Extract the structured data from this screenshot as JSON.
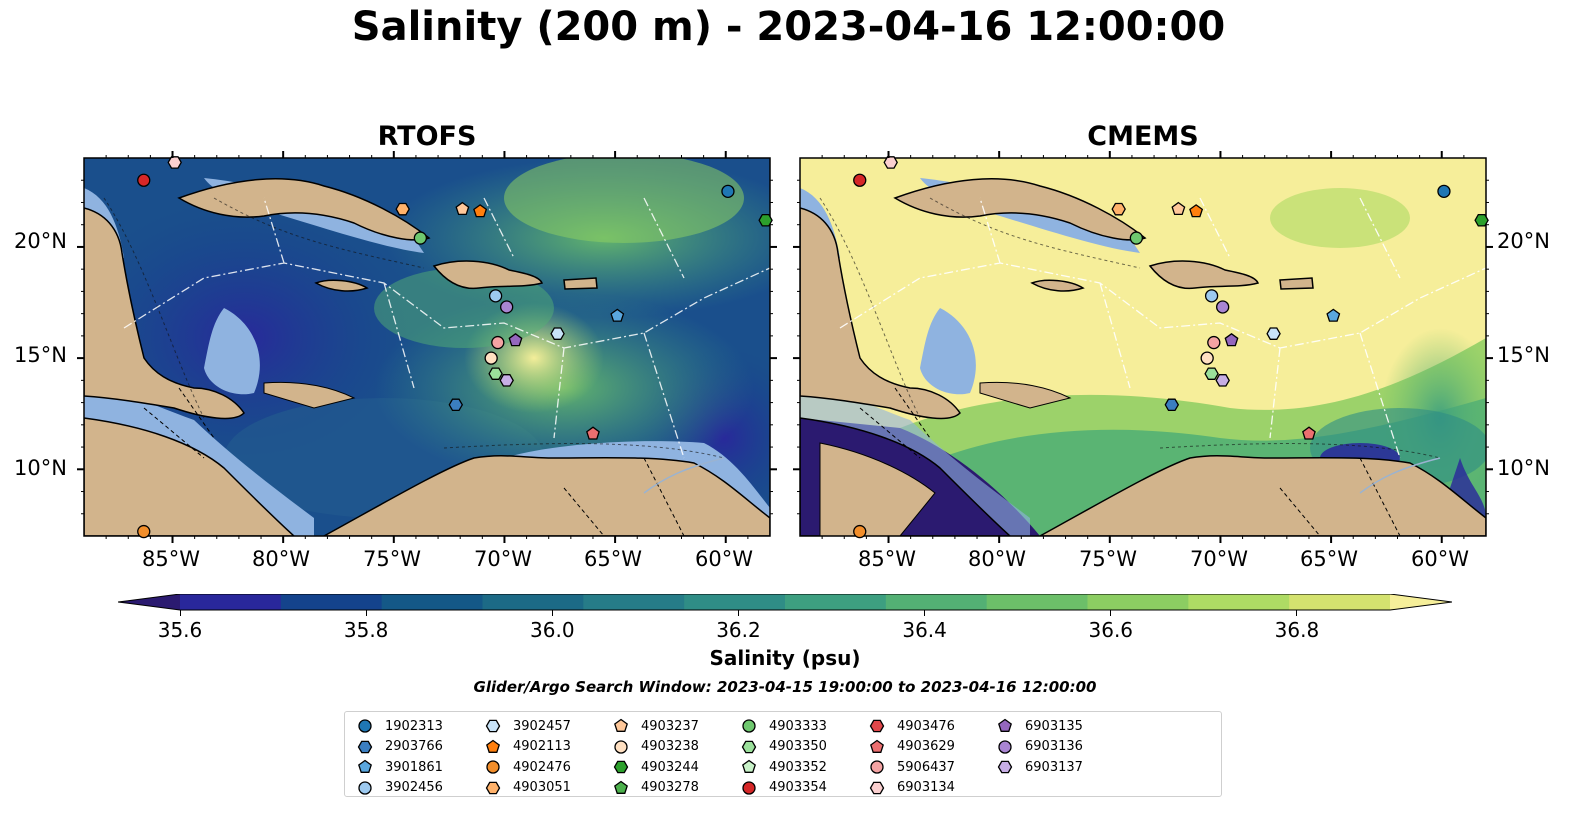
{
  "title": "Salinity (200 m) - 2023-04-16 12:00:00",
  "panels": [
    {
      "title": "RTOFS"
    },
    {
      "title": "CMEMS"
    }
  ],
  "map_extent": {
    "lon": [
      -89,
      -58
    ],
    "lat": [
      7,
      24
    ]
  },
  "lon_ticks": [
    "85°W",
    "80°W",
    "75°W",
    "70°W",
    "65°W",
    "60°W"
  ],
  "lat_ticks": [
    "20°N",
    "15°N",
    "10°N"
  ],
  "colorbar": {
    "label": "Salinity (psu)",
    "ticks": [
      "35.6",
      "35.8",
      "36.0",
      "36.2",
      "36.4",
      "36.6",
      "36.8"
    ],
    "range": [
      35.6,
      36.9
    ],
    "extend": "both",
    "colors": [
      "#2b1a70",
      "#29279b",
      "#14438c",
      "#145887",
      "#1c6a86",
      "#267c88",
      "#2f8d86",
      "#3d9f80",
      "#53b074",
      "#6cbf69",
      "#8ccd62",
      "#aedb64",
      "#d4e26f",
      "#f6ef9a"
    ]
  },
  "search_window": "Glider/Argo Search Window: 2023-04-15 19:00:00 to 2023-04-16 12:00:00",
  "legend": [
    {
      "id": "1902313",
      "marker": "circle",
      "color": "#1f77b4"
    },
    {
      "id": "2903766",
      "marker": "hexagon",
      "color": "#3b7ec1"
    },
    {
      "id": "3901861",
      "marker": "pentagon",
      "color": "#5aa7df"
    },
    {
      "id": "3902456",
      "marker": "circle",
      "color": "#9dcaf0"
    },
    {
      "id": "3902457",
      "marker": "hexagon",
      "color": "#c8e3f8"
    },
    {
      "id": "4902113",
      "marker": "pentagon",
      "color": "#ff7f0e"
    },
    {
      "id": "4902476",
      "marker": "circle",
      "color": "#f28e2b"
    },
    {
      "id": "4903051",
      "marker": "hexagon",
      "color": "#ffb26b"
    },
    {
      "id": "4903237",
      "marker": "pentagon",
      "color": "#ffc89a"
    },
    {
      "id": "4903238",
      "marker": "circle",
      "color": "#ffe0c2"
    },
    {
      "id": "4903244",
      "marker": "hexagon",
      "color": "#2ca02c"
    },
    {
      "id": "4903278",
      "marker": "pentagon",
      "color": "#4cb04c"
    },
    {
      "id": "4903333",
      "marker": "circle",
      "color": "#6fc86f"
    },
    {
      "id": "4903350",
      "marker": "hexagon",
      "color": "#9be09b"
    },
    {
      "id": "4903352",
      "marker": "pentagon",
      "color": "#c8f2c8"
    },
    {
      "id": "4903354",
      "marker": "circle",
      "color": "#d62728"
    },
    {
      "id": "4903476",
      "marker": "hexagon",
      "color": "#e0474a"
    },
    {
      "id": "4903629",
      "marker": "pentagon",
      "color": "#ec6f70"
    },
    {
      "id": "5906437",
      "marker": "circle",
      "color": "#f4a3a3"
    },
    {
      "id": "6903134",
      "marker": "hexagon",
      "color": "#fbd0d0"
    },
    {
      "id": "6903135",
      "marker": "pentagon",
      "color": "#9467bd"
    },
    {
      "id": "6903136",
      "marker": "circle",
      "color": "#a985d2"
    },
    {
      "id": "6903137",
      "marker": "hexagon",
      "color": "#c7aee5"
    }
  ],
  "floats": [
    {
      "id": "4903354",
      "lon": -86.3,
      "lat": 23.0
    },
    {
      "id": "6903134",
      "lon": -84.9,
      "lat": 23.8
    },
    {
      "id": "4902476",
      "lon": -86.3,
      "lat": 7.2
    },
    {
      "id": "1902313",
      "lon": -59.9,
      "lat": 22.5
    },
    {
      "id": "4903244",
      "lon": -58.2,
      "lat": 21.2
    },
    {
      "id": "4903051",
      "lon": -74.6,
      "lat": 21.7
    },
    {
      "id": "4903237",
      "lon": -71.9,
      "lat": 21.7
    },
    {
      "id": "4902113",
      "lon": -71.1,
      "lat": 21.6
    },
    {
      "id": "4903333",
      "lon": -73.8,
      "lat": 20.4
    },
    {
      "id": "3902456",
      "lon": -70.4,
      "lat": 17.8
    },
    {
      "id": "6903136",
      "lon": -69.9,
      "lat": 17.3
    },
    {
      "id": "3901861",
      "lon": -64.9,
      "lat": 16.9
    },
    {
      "id": "3902457",
      "lon": -67.6,
      "lat": 16.1
    },
    {
      "id": "6903135",
      "lon": -69.5,
      "lat": 15.8
    },
    {
      "id": "5906437",
      "lon": -70.3,
      "lat": 15.7
    },
    {
      "id": "4903238",
      "lon": -70.6,
      "lat": 15.0
    },
    {
      "id": "4903350",
      "lon": -70.4,
      "lat": 14.3
    },
    {
      "id": "6903137",
      "lon": -69.9,
      "lat": 14.0
    },
    {
      "id": "2903766",
      "lon": -72.2,
      "lat": 12.9
    },
    {
      "id": "4903629",
      "lon": -66.0,
      "lat": 11.6
    }
  ]
}
